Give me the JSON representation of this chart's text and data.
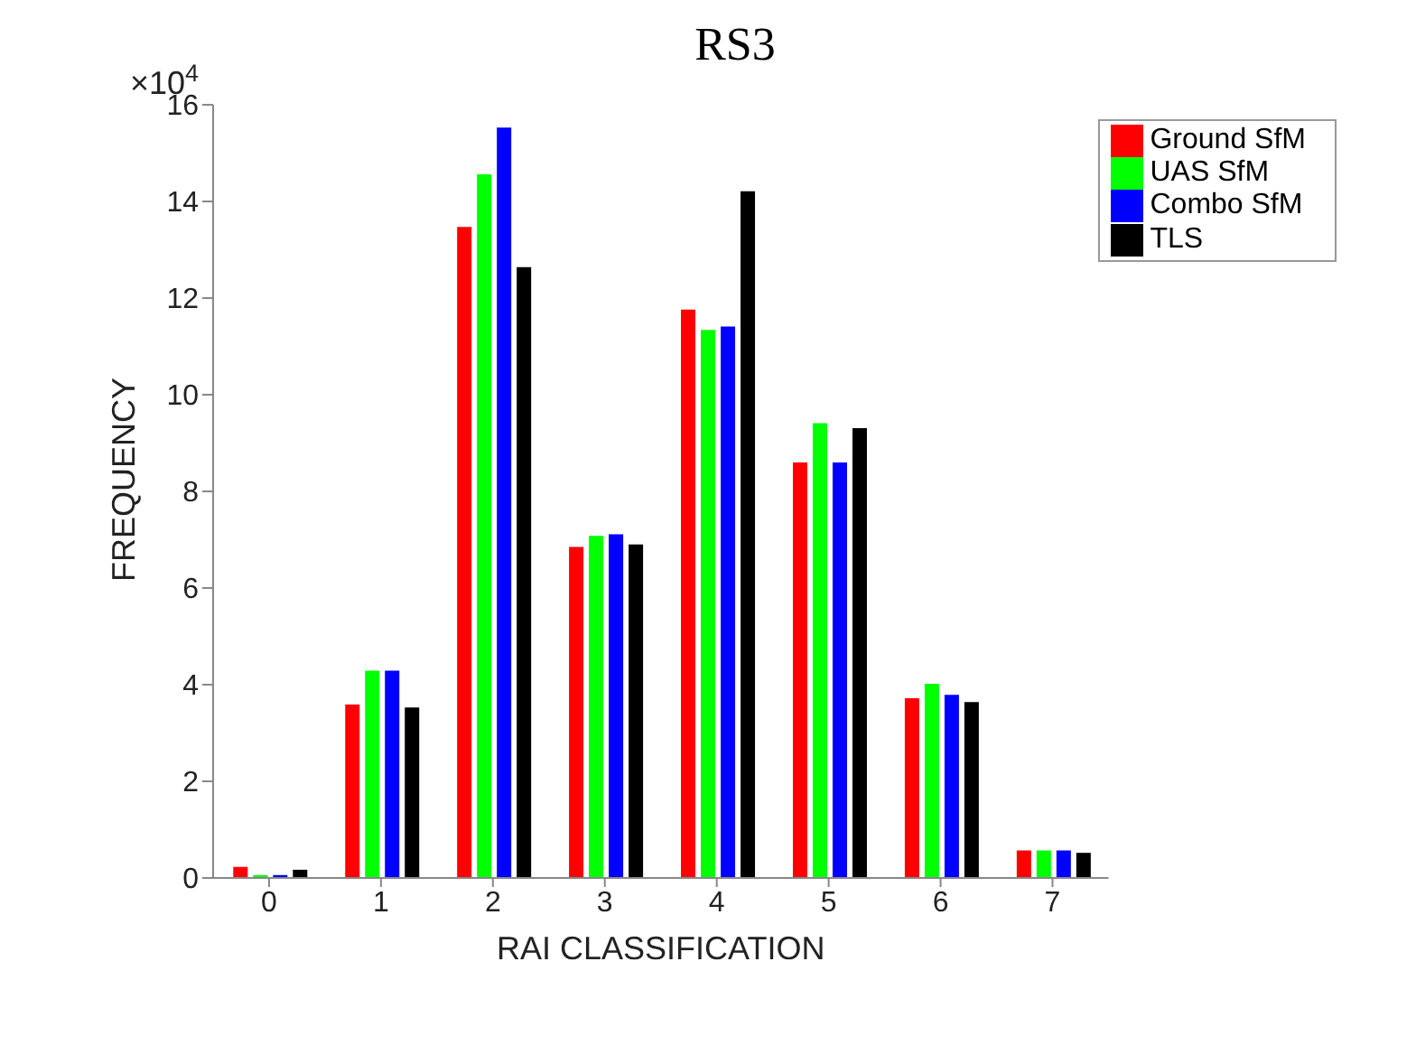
{
  "chart_data": {
    "type": "bar",
    "title": "RS3",
    "xlabel": "RAI CLASSIFICATION",
    "ylabel": "FREQUENCY",
    "annotations": [
      "×10$^{4}$"
    ],
    "categories": [
      "0",
      "1",
      "2",
      "3",
      "4",
      "5",
      "6",
      "7"
    ],
    "series": [
      {
        "name": "Ground SfM",
        "color": "#ff0000",
        "values": [
          0.23,
          3.59,
          13.47,
          6.85,
          11.76,
          8.6,
          3.72,
          0.57
        ]
      },
      {
        "name": "UAS SfM",
        "color": "#00ff00",
        "values": [
          0.06,
          4.29,
          14.56,
          7.08,
          11.34,
          9.41,
          4.02,
          0.57
        ]
      },
      {
        "name": "Combo SfM",
        "color": "#0000ff",
        "values": [
          0.06,
          4.29,
          15.53,
          7.11,
          11.41,
          8.6,
          3.79,
          0.57
        ]
      },
      {
        "name": "TLS",
        "color": "#000000",
        "values": [
          0.17,
          3.53,
          12.64,
          6.9,
          14.21,
          9.31,
          3.64,
          0.52
        ]
      }
    ],
    "ylim": [
      0,
      16
    ],
    "yticks": [
      0,
      2,
      4,
      6,
      8,
      10,
      12,
      14,
      16
    ],
    "legend": "top right"
  }
}
